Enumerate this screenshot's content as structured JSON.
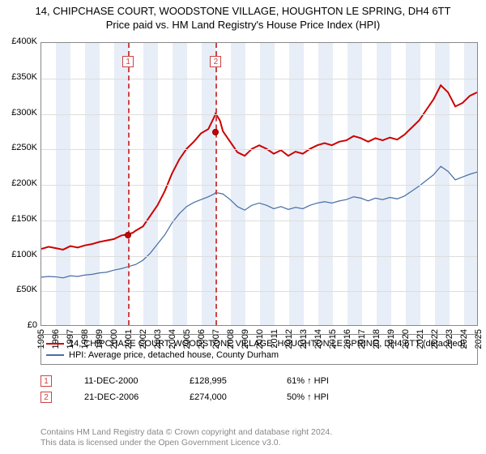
{
  "title": "14, CHIPCHASE COURT, WOODSTONE VILLAGE, HOUGHTON LE SPRING, DH4 6TT",
  "subtitle": "Price paid vs. HM Land Registry's House Price Index (HPI)",
  "chart": {
    "type": "line",
    "y": {
      "min": 0,
      "max": 400000,
      "step": 50000,
      "prefix": "£",
      "suffix": "K",
      "divisor": 1000
    },
    "x": {
      "years": [
        1995,
        1996,
        1997,
        1998,
        1999,
        2000,
        2001,
        2002,
        2003,
        2004,
        2005,
        2006,
        2007,
        2008,
        2009,
        2010,
        2011,
        2012,
        2013,
        2014,
        2015,
        2016,
        2017,
        2018,
        2019,
        2020,
        2021,
        2022,
        2023,
        2024,
        2025
      ]
    },
    "band_years": [
      1996,
      1998,
      2000,
      2002,
      2004,
      2006,
      2008,
      2010,
      2012,
      2014,
      2016,
      2018,
      2020,
      2022,
      2024
    ],
    "grid_color": "#dddddd",
    "band_color": "#e8eef7",
    "border_color": "#888888",
    "series": [
      {
        "name": "14, CHIPCHASE COURT, WOODSTONE VILLAGE, HOUGHTON LE SPRING, DH4 6TT (detached)",
        "color": "#cc0000",
        "width": 2,
        "data": [
          [
            1995.0,
            108000
          ],
          [
            1995.5,
            111000
          ],
          [
            1996.0,
            109000
          ],
          [
            1996.5,
            107000
          ],
          [
            1997.0,
            112000
          ],
          [
            1997.5,
            110000
          ],
          [
            1998.0,
            113000
          ],
          [
            1998.5,
            115000
          ],
          [
            1999.0,
            118000
          ],
          [
            1999.5,
            120000
          ],
          [
            2000.0,
            122000
          ],
          [
            2000.5,
            127000
          ],
          [
            2001.0,
            129000
          ],
          [
            2001.3,
            131000
          ],
          [
            2001.5,
            134000
          ],
          [
            2002.0,
            140000
          ],
          [
            2002.5,
            155000
          ],
          [
            2003.0,
            170000
          ],
          [
            2003.5,
            190000
          ],
          [
            2004.0,
            215000
          ],
          [
            2004.5,
            235000
          ],
          [
            2005.0,
            250000
          ],
          [
            2005.5,
            260000
          ],
          [
            2006.0,
            272000
          ],
          [
            2006.5,
            278000
          ],
          [
            2006.9,
            295000
          ],
          [
            2007.0,
            300000
          ],
          [
            2007.3,
            290000
          ],
          [
            2007.5,
            275000
          ],
          [
            2008.0,
            260000
          ],
          [
            2008.5,
            245000
          ],
          [
            2009.0,
            240000
          ],
          [
            2009.5,
            250000
          ],
          [
            2010.0,
            255000
          ],
          [
            2010.5,
            250000
          ],
          [
            2011.0,
            243000
          ],
          [
            2011.5,
            248000
          ],
          [
            2012.0,
            240000
          ],
          [
            2012.5,
            246000
          ],
          [
            2013.0,
            243000
          ],
          [
            2013.5,
            250000
          ],
          [
            2014.0,
            255000
          ],
          [
            2014.5,
            258000
          ],
          [
            2015.0,
            255000
          ],
          [
            2015.5,
            260000
          ],
          [
            2016.0,
            262000
          ],
          [
            2016.5,
            268000
          ],
          [
            2017.0,
            265000
          ],
          [
            2017.5,
            260000
          ],
          [
            2018.0,
            265000
          ],
          [
            2018.5,
            262000
          ],
          [
            2019.0,
            266000
          ],
          [
            2019.5,
            263000
          ],
          [
            2020.0,
            270000
          ],
          [
            2020.5,
            280000
          ],
          [
            2021.0,
            290000
          ],
          [
            2021.5,
            305000
          ],
          [
            2022.0,
            320000
          ],
          [
            2022.5,
            340000
          ],
          [
            2023.0,
            330000
          ],
          [
            2023.5,
            310000
          ],
          [
            2024.0,
            315000
          ],
          [
            2024.5,
            325000
          ],
          [
            2025.0,
            330000
          ]
        ]
      },
      {
        "name": "HPI: Average price, detached house, County Durham",
        "color": "#4a6fa5",
        "width": 1.25,
        "data": [
          [
            1995.0,
            68000
          ],
          [
            1995.5,
            69000
          ],
          [
            1996.0,
            68500
          ],
          [
            1996.5,
            67000
          ],
          [
            1997.0,
            70000
          ],
          [
            1997.5,
            69000
          ],
          [
            1998.0,
            71000
          ],
          [
            1998.5,
            72000
          ],
          [
            1999.0,
            74000
          ],
          [
            1999.5,
            75000
          ],
          [
            2000.0,
            78000
          ],
          [
            2000.5,
            80000
          ],
          [
            2001.0,
            83000
          ],
          [
            2001.5,
            86000
          ],
          [
            2002.0,
            92000
          ],
          [
            2002.5,
            102000
          ],
          [
            2003.0,
            115000
          ],
          [
            2003.5,
            128000
          ],
          [
            2004.0,
            145000
          ],
          [
            2004.5,
            158000
          ],
          [
            2005.0,
            168000
          ],
          [
            2005.5,
            174000
          ],
          [
            2006.0,
            178000
          ],
          [
            2006.5,
            182000
          ],
          [
            2006.9,
            186000
          ],
          [
            2007.0,
            188000
          ],
          [
            2007.5,
            186000
          ],
          [
            2008.0,
            178000
          ],
          [
            2008.5,
            168000
          ],
          [
            2009.0,
            163000
          ],
          [
            2009.5,
            170000
          ],
          [
            2010.0,
            173000
          ],
          [
            2010.5,
            170000
          ],
          [
            2011.0,
            165000
          ],
          [
            2011.5,
            168000
          ],
          [
            2012.0,
            164000
          ],
          [
            2012.5,
            167000
          ],
          [
            2013.0,
            165000
          ],
          [
            2013.5,
            170000
          ],
          [
            2014.0,
            173000
          ],
          [
            2014.5,
            175000
          ],
          [
            2015.0,
            173000
          ],
          [
            2015.5,
            176000
          ],
          [
            2016.0,
            178000
          ],
          [
            2016.5,
            182000
          ],
          [
            2017.0,
            180000
          ],
          [
            2017.5,
            176000
          ],
          [
            2018.0,
            180000
          ],
          [
            2018.5,
            178000
          ],
          [
            2019.0,
            181000
          ],
          [
            2019.5,
            179000
          ],
          [
            2020.0,
            183000
          ],
          [
            2020.5,
            190000
          ],
          [
            2021.0,
            197000
          ],
          [
            2021.5,
            205000
          ],
          [
            2022.0,
            213000
          ],
          [
            2022.5,
            225000
          ],
          [
            2023.0,
            218000
          ],
          [
            2023.5,
            206000
          ],
          [
            2024.0,
            210000
          ],
          [
            2024.5,
            214000
          ],
          [
            2025.0,
            217000
          ]
        ]
      }
    ],
    "markers": [
      {
        "id": "1",
        "year": 2000.95,
        "value": 128995,
        "line_color": "#cc4444"
      },
      {
        "id": "2",
        "year": 2006.97,
        "value": 274000,
        "line_color": "#cc4444"
      }
    ]
  },
  "legend": {
    "rows": [
      {
        "color": "#cc0000",
        "label": "14, CHIPCHASE COURT, WOODSTONE VILLAGE, HOUGHTON LE SPRING, DH4 6TT (detached)"
      },
      {
        "color": "#4a6fa5",
        "label": "HPI: Average price, detached house, County Durham"
      }
    ]
  },
  "transactions": [
    {
      "id": "1",
      "date": "11-DEC-2000",
      "price": "£128,995",
      "pct": "61% ↑ HPI"
    },
    {
      "id": "2",
      "date": "21-DEC-2006",
      "price": "£274,000",
      "pct": "50% ↑ HPI"
    }
  ],
  "disclaimer": {
    "line1": "Contains HM Land Registry data © Crown copyright and database right 2024.",
    "line2": "This data is licensed under the Open Government Licence v3.0."
  }
}
